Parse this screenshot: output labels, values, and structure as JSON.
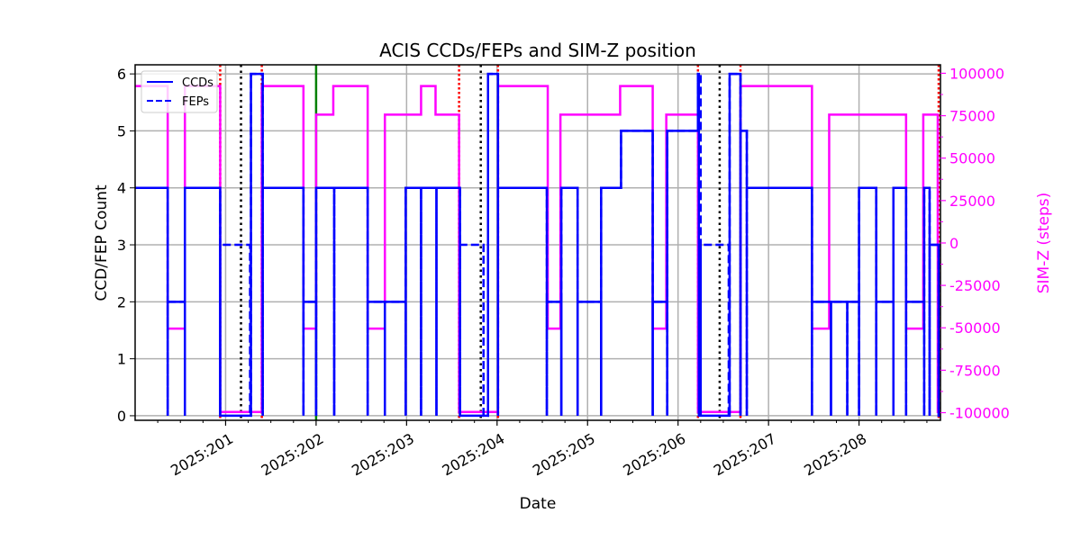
{
  "chart_data": {
    "type": "line",
    "title": "ACIS CCDs/FEPs and SIM-Z position",
    "xlabel": "Date",
    "ylabel": "CCD/FEP Count",
    "ylabel_right": "SIM-Z (steps)",
    "xlim": [
      200.0,
      208.9
    ],
    "ylim": [
      -0.08,
      6.16
    ],
    "ylim_right": [
      -104500,
      105000
    ],
    "x_ticks": [
      201,
      202,
      203,
      204,
      205,
      206,
      207,
      208
    ],
    "x_tick_labels": [
      "2025:201",
      "2025:202",
      "2025:203",
      "2025:204",
      "2025:205",
      "2025:206",
      "2025:207",
      "2025:208"
    ],
    "y_ticks": [
      "0",
      "1",
      "2",
      "3",
      "4",
      "5",
      "6"
    ],
    "y_ticks_right": [
      "-100000",
      "-75000",
      "-50000",
      "-25000",
      "0",
      "25000",
      "50000",
      "75000",
      "100000"
    ],
    "grid": true,
    "legend": {
      "placement": "top-left",
      "entries": [
        "CCDs",
        "FEPs"
      ]
    },
    "colors": {
      "ccds": "#0000ff",
      "feps": "#0000ff",
      "simz": "#ff00ff",
      "red_marker": "#ff0000",
      "black_marker": "#000000",
      "green_marker": "#008000"
    },
    "x_end": 208.9,
    "series": [
      {
        "name": "CCDs",
        "axis": "left",
        "style": "solid",
        "steps": [
          [
            200.0,
            4,
            0
          ],
          [
            200.36,
            2,
            1
          ],
          [
            200.55,
            4,
            1
          ],
          [
            200.94,
            0,
            1
          ],
          [
            201.28,
            6,
            0
          ],
          [
            201.41,
            4,
            1
          ],
          [
            201.86,
            2,
            1
          ],
          [
            202.0,
            4,
            1
          ],
          [
            202.2,
            4,
            1
          ],
          [
            202.57,
            2,
            1
          ],
          [
            202.76,
            2,
            1
          ],
          [
            202.99,
            4,
            1
          ],
          [
            203.16,
            4,
            1
          ],
          [
            203.33,
            4,
            1
          ],
          [
            203.59,
            0,
            1
          ],
          [
            203.9,
            6,
            0
          ],
          [
            204.01,
            4,
            1
          ],
          [
            204.55,
            2,
            1
          ],
          [
            204.71,
            4,
            1
          ],
          [
            204.89,
            2,
            1
          ],
          [
            205.15,
            4,
            1
          ],
          [
            205.37,
            5,
            0
          ],
          [
            205.72,
            2,
            1
          ],
          [
            205.88,
            5,
            1
          ],
          [
            206.22,
            6,
            0
          ],
          [
            206.23,
            0,
            1
          ],
          [
            206.57,
            6,
            0
          ],
          [
            206.69,
            5,
            1
          ],
          [
            206.76,
            4,
            1
          ],
          [
            207.48,
            2,
            1
          ],
          [
            207.69,
            2,
            1
          ],
          [
            207.87,
            2,
            1
          ],
          [
            208.0,
            4,
            1
          ],
          [
            208.19,
            2,
            1
          ],
          [
            208.38,
            4,
            1
          ],
          [
            208.52,
            2,
            1
          ],
          [
            208.72,
            4,
            1
          ],
          [
            208.78,
            3,
            1
          ],
          [
            208.88,
            0,
            1
          ]
        ]
      },
      {
        "name": "FEPs",
        "axis": "left",
        "style": "dashed",
        "steps": [
          [
            200.0,
            4,
            0
          ],
          [
            200.36,
            2,
            1
          ],
          [
            200.55,
            4,
            1
          ],
          [
            200.94,
            3,
            1
          ],
          [
            201.27,
            0,
            0
          ],
          [
            201.28,
            6,
            0
          ],
          [
            201.41,
            4,
            1
          ],
          [
            201.86,
            2,
            1
          ],
          [
            202.0,
            4,
            1
          ],
          [
            202.2,
            4,
            1
          ],
          [
            202.57,
            2,
            1
          ],
          [
            202.76,
            2,
            1
          ],
          [
            202.99,
            4,
            1
          ],
          [
            203.16,
            4,
            1
          ],
          [
            203.33,
            4,
            1
          ],
          [
            203.59,
            3,
            1
          ],
          [
            203.85,
            0,
            0
          ],
          [
            203.9,
            6,
            0
          ],
          [
            204.01,
            4,
            1
          ],
          [
            204.55,
            2,
            1
          ],
          [
            204.71,
            4,
            1
          ],
          [
            204.89,
            2,
            1
          ],
          [
            205.15,
            4,
            1
          ],
          [
            205.37,
            5,
            0
          ],
          [
            205.72,
            2,
            1
          ],
          [
            205.88,
            5,
            1
          ],
          [
            206.22,
            6,
            0
          ],
          [
            206.25,
            3,
            1
          ],
          [
            206.56,
            0,
            0
          ],
          [
            206.57,
            6,
            0
          ],
          [
            206.69,
            5,
            1
          ],
          [
            206.76,
            4,
            1
          ],
          [
            207.48,
            2,
            1
          ],
          [
            207.69,
            2,
            1
          ],
          [
            207.87,
            2,
            1
          ],
          [
            208.0,
            4,
            1
          ],
          [
            208.19,
            2,
            1
          ],
          [
            208.38,
            4,
            1
          ],
          [
            208.52,
            2,
            1
          ],
          [
            208.72,
            4,
            1
          ],
          [
            208.78,
            3,
            1
          ],
          [
            208.88,
            0,
            1
          ]
        ]
      },
      {
        "name": "SIM-Z",
        "axis": "right",
        "style": "solid",
        "steps": [
          [
            200.0,
            92500
          ],
          [
            200.36,
            -50500
          ],
          [
            200.55,
            92500
          ],
          [
            200.94,
            -99600
          ],
          [
            201.4,
            92500
          ],
          [
            201.86,
            -50500
          ],
          [
            202.0,
            75600
          ],
          [
            202.19,
            92500
          ],
          [
            202.57,
            -50500
          ],
          [
            202.76,
            75600
          ],
          [
            203.16,
            92500
          ],
          [
            203.32,
            75600
          ],
          [
            203.58,
            -99600
          ],
          [
            204.01,
            92500
          ],
          [
            204.56,
            -50500
          ],
          [
            204.7,
            75600
          ],
          [
            205.36,
            92500
          ],
          [
            205.72,
            -50500
          ],
          [
            205.87,
            75600
          ],
          [
            206.22,
            -99600
          ],
          [
            206.69,
            92500
          ],
          [
            207.48,
            -50500
          ],
          [
            207.67,
            75600
          ],
          [
            208.52,
            -50500
          ],
          [
            208.71,
            75600
          ],
          [
            208.87,
            -99600
          ]
        ]
      }
    ],
    "markers": {
      "red_dotted": [
        200.94,
        201.4,
        203.58,
        204.01,
        206.22,
        206.69,
        208.88
      ],
      "black_dotted": [
        201.17,
        203.82,
        206.46
      ],
      "green_solid": [
        202.0
      ]
    }
  }
}
